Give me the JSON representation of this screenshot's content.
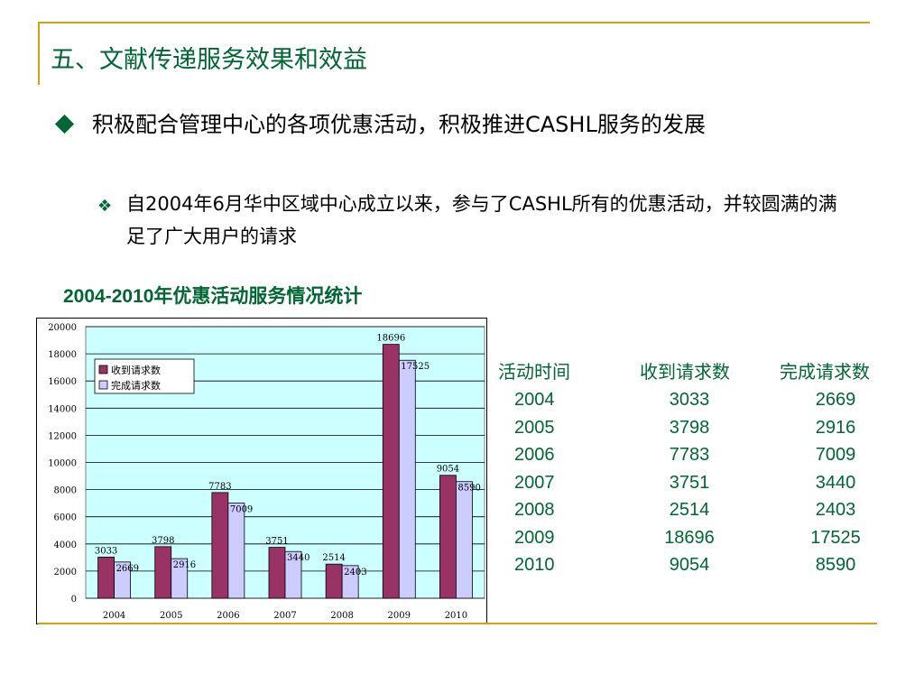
{
  "slide": {
    "title": "五、文献传递服务效果和效益",
    "bullet_main": "积极配合管理中心的各项优惠活动，积极推进CASHL服务的发展",
    "bullet_sub": "自2004年6月华中区域中心成立以来，参与了CASHL所有的优惠活动，并较圆满的满足了广大用户的请求"
  },
  "colors": {
    "accent": "#006633",
    "rule": "#d4a017",
    "plot_bg": "#ccffff",
    "series_received": "#993366",
    "series_completed": "#ccccff"
  },
  "chart_data": {
    "type": "bar",
    "title": "2004-2010年优惠活动服务情况统计",
    "categories": [
      "2004",
      "2005",
      "2006",
      "2007",
      "2008",
      "2009",
      "2010"
    ],
    "series": [
      {
        "name": "收到请求数",
        "values": [
          3033,
          3798,
          7783,
          3751,
          2514,
          18696,
          9054
        ]
      },
      {
        "name": "完成请求数",
        "values": [
          2669,
          2916,
          7009,
          3440,
          2403,
          17525,
          8590
        ]
      }
    ],
    "ylim": [
      0,
      20000
    ],
    "yticks": [
      0,
      2000,
      4000,
      6000,
      8000,
      10000,
      12000,
      14000,
      16000,
      18000,
      20000
    ],
    "grid": true,
    "legend": "top-left",
    "data_labels": true
  },
  "table": {
    "headers": [
      "活动时间",
      "收到请求数",
      "完成请求数"
    ],
    "rows": [
      [
        "2004",
        "3033",
        "2669"
      ],
      [
        "2005",
        "3798",
        "2916"
      ],
      [
        "2006",
        "7783",
        "7009"
      ],
      [
        "2007",
        "3751",
        "3440"
      ],
      [
        "2008",
        "2514",
        "2403"
      ],
      [
        "2009",
        "18696",
        "17525"
      ],
      [
        "2010",
        "9054",
        "8590"
      ]
    ]
  }
}
